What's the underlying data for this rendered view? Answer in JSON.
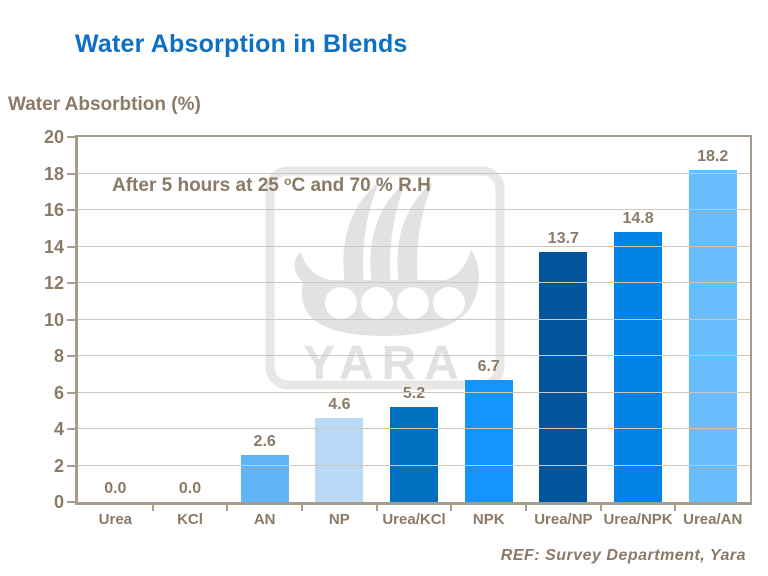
{
  "title": "Water Absorption in Blends",
  "footer_ref": "REF: Survey Department, Yara",
  "watermark_text": "YARA",
  "colors": {
    "title": "#0d70c5",
    "text": "#8a7a66",
    "frame": "#a79b8d",
    "gridline": "#cfc7ba",
    "watermark": "#e4e4e4"
  },
  "chart_data": {
    "type": "bar",
    "title": "Water Absorption in Blends",
    "ylabel": "Water Absorbtion (%)",
    "xlabel": "",
    "annotation": {
      "prefix": "After 5 hours at 25 ",
      "superscript": "o",
      "suffix": "C and 70 % R.H"
    },
    "categories": [
      "Urea",
      "KCl",
      "AN",
      "NP",
      "Urea/KCl",
      "NPK",
      "Urea/NP",
      "Urea/NPK",
      "Urea/AN"
    ],
    "values": [
      0.0,
      0.0,
      2.6,
      4.6,
      5.2,
      6.7,
      13.7,
      14.8,
      18.2
    ],
    "value_labels": [
      "0.0",
      "0.0",
      "2.6",
      "4.6",
      "5.2",
      "6.7",
      "13.7",
      "14.8",
      "18.2"
    ],
    "bar_colors": [
      "#0070c0",
      "#0070c0",
      "#60b3f6",
      "#b9d9f7",
      "#0070c0",
      "#1495fd",
      "#02549b",
      "#0283e8",
      "#6abdfd"
    ],
    "ylim": [
      0,
      20
    ],
    "yticks": [
      0,
      2,
      4,
      6,
      8,
      10,
      12,
      14,
      16,
      18,
      20
    ],
    "grid": true,
    "legend": "none"
  }
}
